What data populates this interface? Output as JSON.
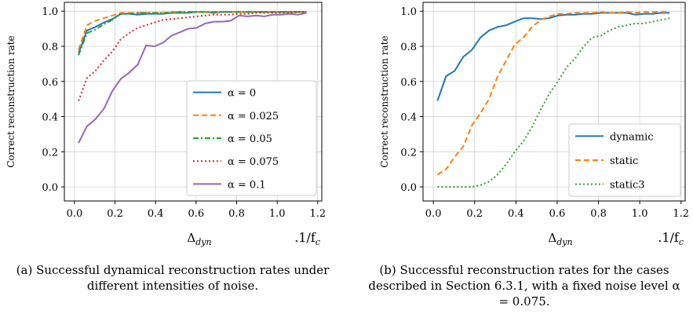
{
  "chart_data": [
    {
      "type": "line",
      "id": "a",
      "ylabel": "Correct reconstruction rate",
      "xlabel": "Δ_dyn",
      "xunit": ".1/f_c",
      "xlim": [
        -0.05,
        1.22
      ],
      "ylim": [
        -0.08,
        1.05
      ],
      "xticks": [
        "0.0",
        "0.2",
        "0.4",
        "0.6",
        "0.8",
        "1.0",
        "1.2"
      ],
      "yticks": [
        "0.0",
        "0.2",
        "0.4",
        "0.6",
        "0.8",
        "1.0"
      ],
      "grid": true,
      "legend": "center-right",
      "caption": "(a) Successful dynamical reconstruction rates under different intensities of noise.",
      "x": [
        0.02,
        0.0617,
        0.1033,
        0.145,
        0.1867,
        0.2283,
        0.27,
        0.3117,
        0.3533,
        0.395,
        0.4367,
        0.4783,
        0.52,
        0.5617,
        0.6033,
        0.645,
        0.6867,
        0.7283,
        0.77,
        0.8117,
        0.8533,
        0.895,
        0.9367,
        0.9783,
        1.02,
        1.0617,
        1.1033,
        1.145
      ],
      "series": [
        {
          "name": "α = 0",
          "color": "#1f77b4",
          "dash": "solid",
          "values": [
            0.76,
            0.89,
            0.91,
            0.935,
            0.955,
            0.985,
            0.985,
            0.98,
            0.985,
            0.985,
            0.985,
            0.99,
            0.99,
            0.99,
            0.995,
            0.995,
            0.99,
            0.995,
            0.995,
            0.995,
            0.995,
            0.995,
            0.995,
            0.995,
            0.995,
            0.995,
            0.995,
            0.995
          ]
        },
        {
          "name": "α = 0.025",
          "color": "#ff7f0e",
          "dash": "dashed",
          "values": [
            0.78,
            0.92,
            0.945,
            0.96,
            0.975,
            0.99,
            0.99,
            0.99,
            0.99,
            0.99,
            0.99,
            0.995,
            0.995,
            0.995,
            0.995,
            0.995,
            0.995,
            0.995,
            0.995,
            0.995,
            0.995,
            0.995,
            0.995,
            0.995,
            0.995,
            0.995,
            0.995,
            0.995
          ]
        },
        {
          "name": "α = 0.05",
          "color": "#2ca02c",
          "dash": "dashdot",
          "values": [
            0.75,
            0.875,
            0.895,
            0.925,
            0.95,
            0.985,
            0.985,
            0.99,
            0.99,
            0.99,
            0.99,
            0.99,
            0.995,
            0.995,
            0.995,
            0.995,
            0.995,
            0.995,
            0.995,
            0.995,
            0.995,
            0.995,
            0.995,
            0.995,
            0.995,
            0.995,
            0.995,
            0.995
          ]
        },
        {
          "name": "α = 0.075",
          "color": "#d62728",
          "dash": "dotted",
          "values": [
            0.49,
            0.62,
            0.66,
            0.72,
            0.77,
            0.84,
            0.875,
            0.905,
            0.92,
            0.935,
            0.95,
            0.955,
            0.96,
            0.965,
            0.97,
            0.975,
            0.98,
            0.98,
            0.98,
            0.985,
            0.985,
            0.99,
            0.99,
            0.99,
            0.99,
            0.99,
            0.995,
            0.995
          ]
        },
        {
          "name": "α = 0.1",
          "color": "#9467bd",
          "dash": "solid",
          "values": [
            0.25,
            0.345,
            0.385,
            0.445,
            0.545,
            0.615,
            0.65,
            0.695,
            0.805,
            0.8,
            0.82,
            0.86,
            0.88,
            0.9,
            0.905,
            0.93,
            0.94,
            0.94,
            0.945,
            0.975,
            0.97,
            0.975,
            0.97,
            0.98,
            0.98,
            0.985,
            0.98,
            0.99
          ]
        }
      ]
    },
    {
      "type": "line",
      "id": "b",
      "ylabel": "Correct reconstruction rate",
      "xlabel": "Δ_dyn",
      "xunit": ".1/f_c",
      "xlim": [
        -0.05,
        1.22
      ],
      "ylim": [
        -0.08,
        1.05
      ],
      "xticks": [
        "0.0",
        "0.2",
        "0.4",
        "0.6",
        "0.8",
        "1.0",
        "1.2"
      ],
      "yticks": [
        "0.0",
        "0.2",
        "0.4",
        "0.6",
        "0.8",
        "1.0"
      ],
      "grid": true,
      "legend": "bottom-right",
      "caption": "(b) Successful reconstruction rates for the cases described in Section 6.3.1, with a fixed noise level α = 0.075.",
      "x": [
        0.02,
        0.0617,
        0.1033,
        0.145,
        0.1867,
        0.2283,
        0.27,
        0.3117,
        0.3533,
        0.395,
        0.4367,
        0.4783,
        0.52,
        0.5617,
        0.6033,
        0.645,
        0.6867,
        0.7283,
        0.77,
        0.8117,
        0.8533,
        0.895,
        0.9367,
        0.9783,
        1.02,
        1.0617,
        1.1033,
        1.145
      ],
      "series": [
        {
          "name": "dynamic",
          "color": "#1f77b4",
          "dash": "solid",
          "values": [
            0.49,
            0.63,
            0.66,
            0.74,
            0.78,
            0.85,
            0.89,
            0.91,
            0.92,
            0.94,
            0.96,
            0.96,
            0.955,
            0.96,
            0.975,
            0.98,
            0.98,
            0.985,
            0.985,
            0.99,
            0.99,
            0.99,
            0.99,
            0.98,
            0.985,
            0.985,
            0.99,
            0.99
          ]
        },
        {
          "name": "static",
          "color": "#ff7f0e",
          "dash": "dashed",
          "values": [
            0.07,
            0.1,
            0.17,
            0.23,
            0.35,
            0.42,
            0.5,
            0.63,
            0.72,
            0.81,
            0.85,
            0.91,
            0.95,
            0.97,
            0.985,
            0.985,
            0.99,
            0.99,
            0.99,
            0.995,
            0.99,
            0.99,
            0.995,
            0.99,
            0.995,
            0.995,
            0.995,
            0.995
          ]
        },
        {
          "name": "static3",
          "color": "#2ca02c",
          "dash": "dotted",
          "values": [
            0.0,
            0.0,
            0.0,
            0.0,
            0.0,
            0.01,
            0.03,
            0.07,
            0.13,
            0.2,
            0.26,
            0.34,
            0.44,
            0.53,
            0.6,
            0.68,
            0.73,
            0.8,
            0.85,
            0.86,
            0.89,
            0.91,
            0.92,
            0.93,
            0.93,
            0.94,
            0.95,
            0.96
          ]
        }
      ]
    }
  ]
}
